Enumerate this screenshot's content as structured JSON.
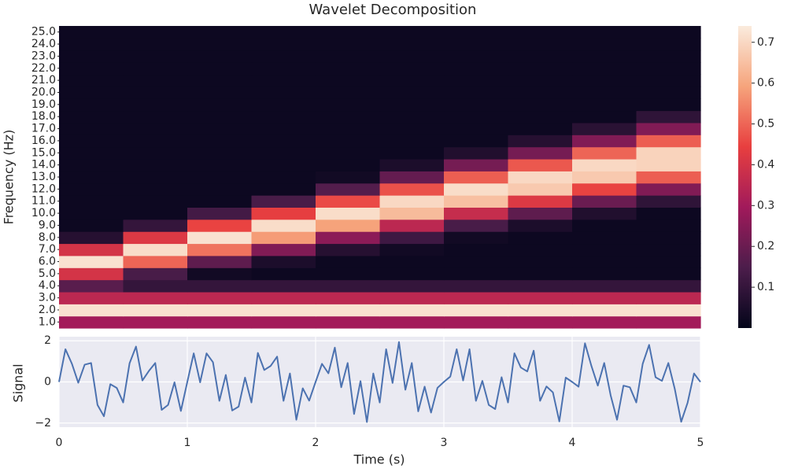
{
  "chart_data": [
    {
      "type": "heatmap",
      "title": "Wavelet Decomposition",
      "ylabel": "Frequency (Hz)",
      "x": [
        0.25,
        0.75,
        1.25,
        1.75,
        2.25,
        2.75,
        3.25,
        3.75,
        4.25,
        4.75
      ],
      "y": [
        1,
        2,
        3,
        4,
        5,
        6,
        7,
        8,
        9,
        10,
        11,
        12,
        13,
        14,
        15,
        16,
        17,
        18,
        19,
        20,
        21,
        22,
        23,
        24,
        25
      ],
      "z": [
        [
          0.3,
          0.3,
          0.3,
          0.3,
          0.3,
          0.3,
          0.3,
          0.3,
          0.3,
          0.3
        ],
        [
          0.72,
          0.72,
          0.72,
          0.72,
          0.72,
          0.72,
          0.72,
          0.72,
          0.72,
          0.72
        ],
        [
          0.35,
          0.35,
          0.35,
          0.35,
          0.35,
          0.35,
          0.35,
          0.35,
          0.35,
          0.35
        ],
        [
          0.17,
          0.1,
          0.1,
          0.1,
          0.1,
          0.1,
          0.1,
          0.1,
          0.1,
          0.1
        ],
        [
          0.4,
          0.14,
          0.03,
          0.02,
          0.02,
          0.02,
          0.02,
          0.02,
          0.02,
          0.02
        ],
        [
          0.72,
          0.5,
          0.18,
          0.05,
          0.02,
          0.02,
          0.02,
          0.02,
          0.02,
          0.02
        ],
        [
          0.4,
          0.71,
          0.52,
          0.24,
          0.07,
          0.03,
          0.02,
          0.02,
          0.02,
          0.02
        ],
        [
          0.07,
          0.42,
          0.72,
          0.58,
          0.26,
          0.12,
          0.03,
          0.02,
          0.02,
          0.02
        ],
        [
          0.02,
          0.1,
          0.45,
          0.71,
          0.59,
          0.35,
          0.14,
          0.05,
          0.02,
          0.02
        ],
        [
          0.02,
          0.02,
          0.13,
          0.44,
          0.71,
          0.64,
          0.37,
          0.18,
          0.06,
          0.02
        ],
        [
          0.02,
          0.02,
          0.02,
          0.14,
          0.46,
          0.7,
          0.65,
          0.42,
          0.2,
          0.09
        ],
        [
          0.02,
          0.02,
          0.02,
          0.02,
          0.16,
          0.47,
          0.71,
          0.67,
          0.45,
          0.24
        ],
        [
          0.02,
          0.02,
          0.02,
          0.02,
          0.03,
          0.19,
          0.49,
          0.7,
          0.67,
          0.49
        ],
        [
          0.02,
          0.02,
          0.02,
          0.02,
          0.02,
          0.05,
          0.22,
          0.48,
          0.7,
          0.69
        ],
        [
          0.02,
          0.02,
          0.02,
          0.02,
          0.02,
          0.02,
          0.06,
          0.22,
          0.5,
          0.69
        ],
        [
          0.02,
          0.02,
          0.02,
          0.02,
          0.02,
          0.02,
          0.02,
          0.07,
          0.24,
          0.49
        ],
        [
          0.02,
          0.02,
          0.02,
          0.02,
          0.02,
          0.02,
          0.02,
          0.02,
          0.08,
          0.24
        ],
        [
          0.02,
          0.02,
          0.02,
          0.02,
          0.02,
          0.02,
          0.02,
          0.02,
          0.02,
          0.09
        ],
        [
          0.02,
          0.02,
          0.02,
          0.02,
          0.02,
          0.02,
          0.02,
          0.02,
          0.02,
          0.02
        ],
        [
          0.02,
          0.02,
          0.02,
          0.02,
          0.02,
          0.02,
          0.02,
          0.02,
          0.02,
          0.02
        ],
        [
          0.02,
          0.02,
          0.02,
          0.02,
          0.02,
          0.02,
          0.02,
          0.02,
          0.02,
          0.02
        ],
        [
          0.02,
          0.02,
          0.02,
          0.02,
          0.02,
          0.02,
          0.02,
          0.02,
          0.02,
          0.02
        ],
        [
          0.02,
          0.02,
          0.02,
          0.02,
          0.02,
          0.02,
          0.02,
          0.02,
          0.02,
          0.02
        ],
        [
          0.02,
          0.02,
          0.02,
          0.02,
          0.02,
          0.02,
          0.02,
          0.02,
          0.02,
          0.02
        ],
        [
          0.02,
          0.02,
          0.02,
          0.02,
          0.02,
          0.02,
          0.02,
          0.02,
          0.02,
          0.02
        ]
      ],
      "xlim": [
        0,
        5
      ],
      "ylim": [
        0.5,
        25.5
      ],
      "yticks": [
        {
          "value": 1,
          "label": "1.0"
        },
        {
          "value": 2,
          "label": "2.0"
        },
        {
          "value": 3,
          "label": "3.0"
        },
        {
          "value": 4,
          "label": "4.0"
        },
        {
          "value": 5,
          "label": "5.0"
        },
        {
          "value": 6,
          "label": "6.0"
        },
        {
          "value": 7,
          "label": "7.0"
        },
        {
          "value": 8,
          "label": "8.0"
        },
        {
          "value": 9,
          "label": "9.0"
        },
        {
          "value": 10,
          "label": "10.0"
        },
        {
          "value": 11,
          "label": "11.0"
        },
        {
          "value": 12,
          "label": "12.0"
        },
        {
          "value": 13,
          "label": "13.0"
        },
        {
          "value": 14,
          "label": "14.0"
        },
        {
          "value": 15,
          "label": "15.0"
        },
        {
          "value": 16,
          "label": "16.0"
        },
        {
          "value": 17,
          "label": "17.0"
        },
        {
          "value": 18,
          "label": "18.0"
        },
        {
          "value": 19,
          "label": "19.0"
        },
        {
          "value": 20,
          "label": "20.0"
        },
        {
          "value": 21,
          "label": "21.0"
        },
        {
          "value": 22,
          "label": "22.0"
        },
        {
          "value": 23,
          "label": "23.0"
        },
        {
          "value": 24,
          "label": "24.0"
        },
        {
          "value": 25,
          "label": "25.0"
        }
      ],
      "clim": [
        0,
        0.74
      ],
      "cticks": [
        0.1,
        0.2,
        0.3,
        0.4,
        0.5,
        0.6,
        0.7
      ],
      "colormap": [
        "#03051a",
        "#4c1d4b",
        "#a11a5b",
        "#e83f3f",
        "#f6a47c",
        "#faebdd"
      ]
    },
    {
      "type": "line",
      "xlabel": "Time (s)",
      "ylabel": "Signal",
      "color": "#4c72b0",
      "grid": true,
      "x": [
        0,
        0.05,
        0.1,
        0.15,
        0.2,
        0.25,
        0.3,
        0.35,
        0.4,
        0.45,
        0.5,
        0.55,
        0.6,
        0.65,
        0.7,
        0.75,
        0.8,
        0.85,
        0.9,
        0.95,
        1,
        1.05,
        1.1,
        1.15,
        1.2,
        1.25,
        1.3,
        1.35,
        1.4,
        1.45,
        1.5,
        1.55,
        1.6,
        1.65,
        1.7,
        1.75,
        1.8,
        1.85,
        1.9,
        1.95,
        2,
        2.05,
        2.1,
        2.15,
        2.2,
        2.25,
        2.3,
        2.35,
        2.4,
        2.45,
        2.5,
        2.55,
        2.6,
        2.65,
        2.7,
        2.75,
        2.8,
        2.85,
        2.9,
        2.95,
        3,
        3.05,
        3.1,
        3.15,
        3.2,
        3.25,
        3.3,
        3.35,
        3.4,
        3.45,
        3.5,
        3.55,
        3.6,
        3.65,
        3.7,
        3.75,
        3.8,
        3.85,
        3.9,
        3.95,
        4,
        4.05,
        4.1,
        4.15,
        4.2,
        4.25,
        4.3,
        4.35,
        4.4,
        4.45,
        4.5,
        4.55,
        4.6,
        4.65,
        4.7,
        4.75,
        4.8,
        4.85,
        4.9,
        4.95,
        5
      ],
      "values": [
        0,
        1.59,
        0.89,
        -0.04,
        0.84,
        0.92,
        -1.12,
        -1.67,
        -0.11,
        -0.29,
        -1.0,
        0.91,
        1.72,
        0.07,
        0.53,
        0.92,
        -1.36,
        -1.12,
        -0.02,
        -1.41,
        0,
        1.39,
        -0.02,
        1.39,
        0.96,
        -0.92,
        0.34,
        -1.39,
        -1.2,
        0.21,
        -1,
        1.41,
        0.58,
        0.78,
        1.23,
        -0.92,
        0.41,
        -1.84,
        -0.31,
        -0.91,
        0,
        0.88,
        0.42,
        1.67,
        -0.26,
        0.92,
        -1.56,
        0.04,
        -1.95,
        0.41,
        -1,
        1.59,
        -0.05,
        1.94,
        -0.38,
        0.92,
        -1.43,
        -0.23,
        -1.49,
        -0.29,
        0,
        0.26,
        1.59,
        0.07,
        1.59,
        -0.92,
        0.05,
        -1.12,
        -1.32,
        0.23,
        -1,
        1.39,
        0.7,
        0.51,
        1.52,
        -0.92,
        -0.22,
        -0.51,
        -1.92,
        0.21,
        0,
        -0.23,
        1.88,
        0.78,
        -0.18,
        0.92,
        -0.65,
        -1.84,
        -0.18,
        -0.26,
        -1,
        0.88,
        1.8,
        0.23,
        0.05,
        0.92,
        -0.34,
        -1.94,
        -1.01,
        0.41,
        0
      ],
      "xlim": [
        0,
        5
      ],
      "xticks": [
        0,
        1,
        2,
        3,
        4,
        5
      ],
      "ylim": [
        -2.2,
        2.2
      ],
      "yticks": [
        {
          "value": -2,
          "label": "−2"
        },
        0,
        2
      ]
    }
  ]
}
